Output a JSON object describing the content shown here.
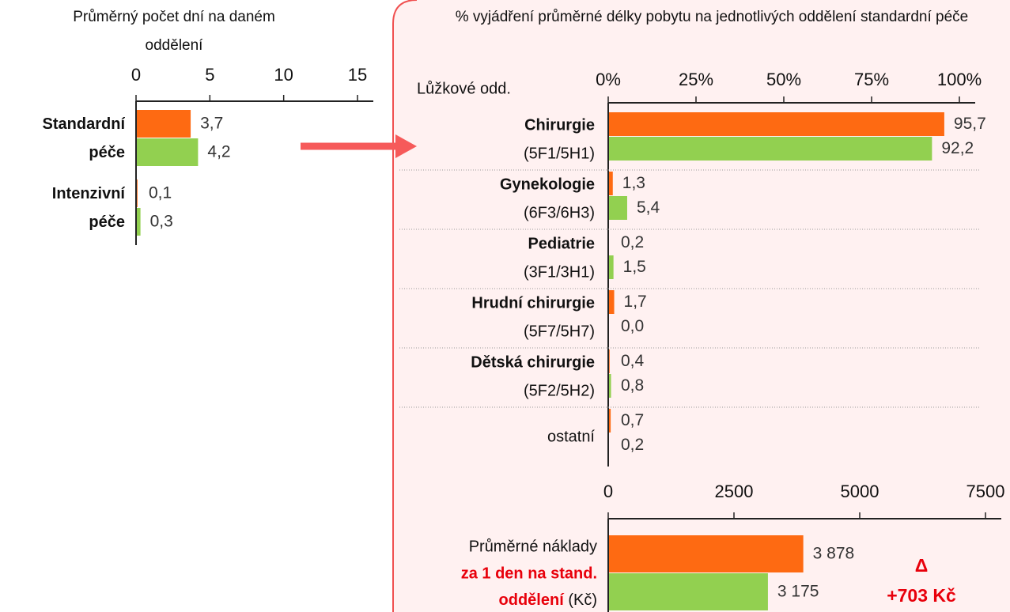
{
  "chart_data": [
    {
      "type": "bar",
      "orientation": "horizontal",
      "title": "Průměrný počet dní na daném oddělení",
      "categories": [
        "Standardní péče",
        "Intenzivní péče"
      ],
      "series": [
        {
          "color": "#fe6a12",
          "values": [
            3.7,
            0.1
          ],
          "value_labels": [
            "3,7",
            "0,1"
          ]
        },
        {
          "color": "#92d050",
          "values": [
            4.2,
            0.3
          ],
          "value_labels": [
            "4,2",
            "0,3"
          ]
        }
      ],
      "xlim": [
        0,
        15
      ],
      "xticks": [
        0,
        5,
        10,
        15
      ]
    },
    {
      "type": "bar",
      "orientation": "horizontal",
      "title": "% vyjádření průměrné délky pobytu na jednotlivých oddělení standardní péče",
      "y_label": "Lůžkové odd.",
      "categories": [
        "Chirurgie",
        "Gynekologie",
        "Pediatrie",
        "Hrudní chirurgie",
        "Dětská chirurgie",
        "ostatní"
      ],
      "category_codes": [
        "(5F1/5H1)",
        "(6F3/6H3)",
        "(3F1/3H1)",
        "(5F7/5H7)",
        "(5F2/5H2)",
        null
      ],
      "series": [
        {
          "color": "#fe6a12",
          "values": [
            95.7,
            1.3,
            0.2,
            1.7,
            0.4,
            0.7
          ],
          "value_labels": [
            "95,7",
            "1,3",
            "0,2",
            "1,7",
            "0,4",
            "0,7"
          ]
        },
        {
          "color": "#92d050",
          "values": [
            92.2,
            5.4,
            1.5,
            0.0,
            0.8,
            0.2
          ],
          "value_labels": [
            "92,2",
            "5,4",
            "1,5",
            "0,0",
            "0,8",
            "0,2"
          ]
        }
      ],
      "xlim": [
        0,
        100
      ],
      "xticks": [
        {
          "value": 0,
          "label": "0%"
        },
        {
          "value": 25,
          "label": "25%"
        },
        {
          "value": 50,
          "label": "50%"
        },
        {
          "value": 75,
          "label": "75%"
        },
        {
          "value": 100,
          "label": "100%"
        }
      ]
    },
    {
      "type": "bar",
      "orientation": "horizontal",
      "category_label": [
        "Průměrné náklady",
        "za 1 den na stand.",
        "oddělení",
        "(Kč)"
      ],
      "series": [
        {
          "color": "#fe6a12",
          "values": [
            3878
          ],
          "value_labels": [
            "3 878"
          ]
        },
        {
          "color": "#92d050",
          "values": [
            3175
          ],
          "value_labels": [
            "3 175"
          ]
        }
      ],
      "xlim": [
        0,
        7500
      ],
      "xticks": [
        0,
        2500,
        5000,
        7500
      ],
      "annotations": [
        "Δ",
        "+703 Kč"
      ],
      "annotation_color": "#e8000b"
    }
  ]
}
